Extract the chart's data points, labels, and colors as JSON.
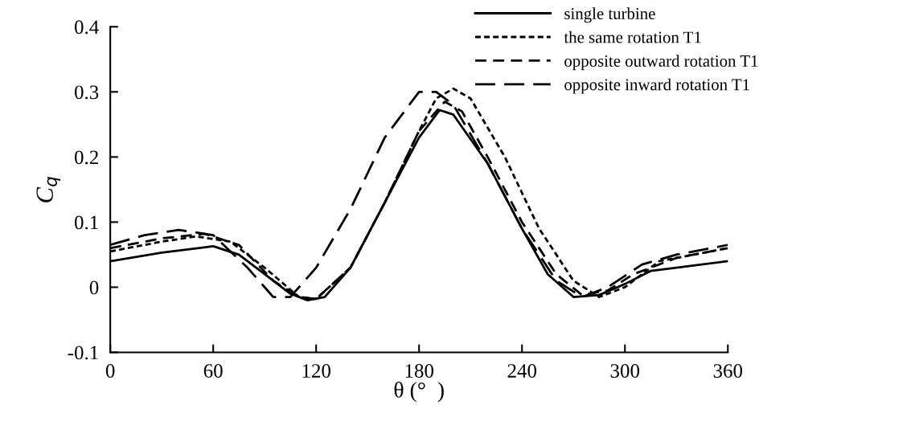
{
  "chart_data": {
    "type": "line",
    "xlabel": "θ (°  )",
    "ylabel": "C$_{q}$",
    "xlim": [
      0,
      360
    ],
    "xticks": [
      0,
      60,
      120,
      180,
      240,
      300,
      360
    ],
    "ylim": [
      -0.1,
      0.4
    ],
    "yticks": [
      -0.1,
      0,
      0.1,
      0.2,
      0.3,
      0.4
    ],
    "grid": false,
    "legend": "top right",
    "series": [
      {
        "name": "single turbine",
        "color": "#000000",
        "line_style": "solid",
        "x": [
          0,
          30,
          60,
          75,
          90,
          105,
          115,
          125,
          140,
          160,
          180,
          192,
          200,
          220,
          240,
          255,
          270,
          285,
          300,
          315,
          330,
          360
        ],
        "values": [
          0.04,
          0.053,
          0.063,
          0.05,
          0.02,
          -0.01,
          -0.02,
          -0.015,
          0.03,
          0.13,
          0.23,
          0.272,
          0.265,
          0.19,
          0.09,
          0.02,
          -0.015,
          -0.012,
          0.005,
          0.025,
          0.03,
          0.04
        ]
      },
      {
        "name": "the same rotation T1",
        "color": "#000000",
        "line_style": "dotted",
        "x": [
          0,
          30,
          50,
          70,
          90,
          110,
          120,
          140,
          160,
          180,
          190,
          200,
          210,
          230,
          250,
          270,
          285,
          300,
          320,
          340,
          360
        ],
        "values": [
          0.055,
          0.07,
          0.078,
          0.07,
          0.03,
          -0.015,
          -0.018,
          0.03,
          0.13,
          0.24,
          0.29,
          0.305,
          0.29,
          0.2,
          0.09,
          0.01,
          -0.015,
          0.0,
          0.04,
          0.05,
          0.06
        ]
      },
      {
        "name": "opposite outward rotation T1",
        "color": "#000000",
        "line_style": "dashed",
        "x": [
          0,
          30,
          55,
          75,
          95,
          110,
          120,
          140,
          160,
          180,
          195,
          205,
          220,
          240,
          260,
          275,
          290,
          305,
          330,
          360
        ],
        "values": [
          0.06,
          0.075,
          0.082,
          0.065,
          0.01,
          -0.015,
          -0.018,
          0.03,
          0.13,
          0.24,
          0.285,
          0.27,
          0.2,
          0.1,
          0.02,
          -0.012,
          -0.005,
          0.02,
          0.045,
          0.06
        ]
      },
      {
        "name": "opposite inward rotation T1",
        "color": "#000000",
        "line_style": "longdash",
        "x": [
          0,
          20,
          40,
          60,
          80,
          95,
          105,
          120,
          140,
          160,
          180,
          190,
          200,
          220,
          240,
          260,
          275,
          290,
          310,
          330,
          360
        ],
        "values": [
          0.065,
          0.08,
          0.088,
          0.08,
          0.03,
          -0.015,
          -0.015,
          0.03,
          0.12,
          0.23,
          0.3,
          0.3,
          0.28,
          0.19,
          0.09,
          0.01,
          -0.015,
          0.0,
          0.035,
          0.05,
          0.065
        ]
      }
    ]
  }
}
